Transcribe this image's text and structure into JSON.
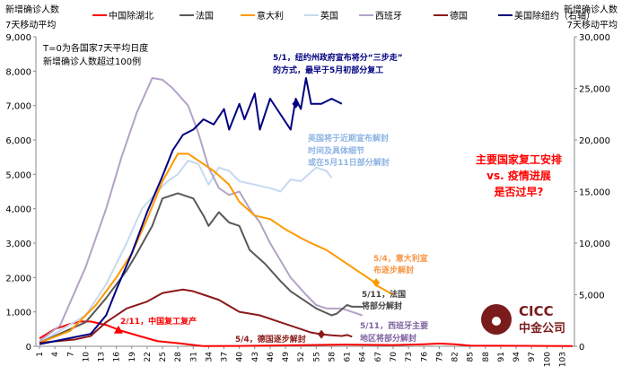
{
  "chart_data": {
    "type": "line",
    "ylabel_left": [
      "新增确诊人数",
      "7天移动平均"
    ],
    "ylabel_right": [
      "新增确诊人数",
      "7天移动平均"
    ],
    "note": [
      "T=0为各国家7天平均日度",
      "新增确诊人数超过100例"
    ],
    "title_annotation": [
      "主要国家复工安排",
      "vs. 疫情进展",
      "是否过早?"
    ],
    "xlim": [
      1,
      105
    ],
    "x_ticks": [
      1,
      4,
      7,
      10,
      13,
      16,
      19,
      22,
      25,
      28,
      31,
      34,
      37,
      40,
      43,
      46,
      49,
      52,
      55,
      58,
      61,
      64,
      67,
      70,
      73,
      76,
      79,
      82,
      85,
      88,
      91,
      94,
      97,
      100,
      103
    ],
    "ylim_left": [
      0,
      9000
    ],
    "y_ticks_left": [
      "0",
      "1,000",
      "2,000",
      "3,000",
      "4,000",
      "5,000",
      "6,000",
      "7,000",
      "8,000",
      "9,000"
    ],
    "ylim_right": [
      0,
      30000
    ],
    "y_ticks_right": [
      "0",
      "5,000",
      "10,000",
      "15,000",
      "20,000",
      "25,000",
      "30,000"
    ],
    "legend_position": "top",
    "series": [
      {
        "name": "中国除湖北",
        "color": "#ff0000",
        "axis": "left",
        "points": [
          [
            1,
            230
          ],
          [
            4,
            500
          ],
          [
            7,
            650
          ],
          [
            9,
            720
          ],
          [
            11,
            720
          ],
          [
            14,
            620
          ],
          [
            17,
            450
          ],
          [
            20,
            320
          ],
          [
            24,
            150
          ],
          [
            28,
            90
          ],
          [
            31,
            40
          ],
          [
            33,
            5
          ],
          [
            40,
            10
          ],
          [
            55,
            40
          ],
          [
            61,
            50
          ],
          [
            70,
            35
          ],
          [
            76,
            60
          ],
          [
            79,
            80
          ],
          [
            82,
            60
          ],
          [
            85,
            20
          ],
          [
            105,
            5
          ]
        ]
      },
      {
        "name": "法国",
        "color": "#595959",
        "axis": "left",
        "points": [
          [
            1,
            100
          ],
          [
            10,
            700
          ],
          [
            14,
            1400
          ],
          [
            18,
            2200
          ],
          [
            20,
            2700
          ],
          [
            23,
            3500
          ],
          [
            25,
            4300
          ],
          [
            27,
            4400
          ],
          [
            28,
            4450
          ],
          [
            31,
            4300
          ],
          [
            33,
            3800
          ],
          [
            34,
            3500
          ],
          [
            36,
            3900
          ],
          [
            38,
            3600
          ],
          [
            40,
            3500
          ],
          [
            42,
            2800
          ],
          [
            45,
            2400
          ],
          [
            48,
            1900
          ],
          [
            50,
            1600
          ],
          [
            53,
            1300
          ],
          [
            55,
            1100
          ],
          [
            58,
            900
          ],
          [
            59,
            950
          ],
          [
            61,
            1200
          ],
          [
            62,
            1150
          ],
          [
            64,
            1150
          ]
        ]
      },
      {
        "name": "意大利",
        "color": "#ff9900",
        "axis": "left",
        "points": [
          [
            1,
            100
          ],
          [
            7,
            450
          ],
          [
            12,
            1200
          ],
          [
            16,
            2000
          ],
          [
            19,
            2700
          ],
          [
            22,
            3700
          ],
          [
            25,
            4800
          ],
          [
            28,
            5600
          ],
          [
            30,
            5600
          ],
          [
            33,
            5300
          ],
          [
            35,
            5100
          ],
          [
            38,
            4700
          ],
          [
            40,
            4200
          ],
          [
            43,
            3800
          ],
          [
            46,
            3700
          ],
          [
            49,
            3400
          ],
          [
            52,
            3150
          ],
          [
            54,
            3000
          ],
          [
            57,
            2800
          ],
          [
            60,
            2500
          ],
          [
            63,
            2200
          ],
          [
            66,
            1900
          ],
          [
            67,
            1750
          ],
          [
            70,
            1500
          ]
        ]
      },
      {
        "name": "英国",
        "color": "#c6d9f0",
        "axis": "left",
        "points": [
          [
            1,
            100
          ],
          [
            10,
            900
          ],
          [
            14,
            1800
          ],
          [
            18,
            3000
          ],
          [
            21,
            4000
          ],
          [
            24,
            4500
          ],
          [
            26,
            4800
          ],
          [
            28,
            5000
          ],
          [
            30,
            5400
          ],
          [
            32,
            5300
          ],
          [
            34,
            4700
          ],
          [
            36,
            5200
          ],
          [
            38,
            5100
          ],
          [
            40,
            4800
          ],
          [
            43,
            4700
          ],
          [
            46,
            4600
          ],
          [
            48,
            4500
          ],
          [
            50,
            4850
          ],
          [
            52,
            4800
          ],
          [
            55,
            5200
          ],
          [
            57,
            5100
          ],
          [
            58,
            4900
          ]
        ]
      },
      {
        "name": "西班牙",
        "color": "#b3a2c7",
        "axis": "left",
        "points": [
          [
            1,
            150
          ],
          [
            5,
            600
          ],
          [
            10,
            2300
          ],
          [
            14,
            4000
          ],
          [
            17,
            5500
          ],
          [
            20,
            6800
          ],
          [
            23,
            7800
          ],
          [
            25,
            7750
          ],
          [
            27,
            7500
          ],
          [
            30,
            7000
          ],
          [
            32,
            6200
          ],
          [
            34,
            5200
          ],
          [
            36,
            4600
          ],
          [
            38,
            4400
          ],
          [
            40,
            4500
          ],
          [
            42,
            4000
          ],
          [
            44,
            3600
          ],
          [
            46,
            3000
          ],
          [
            48,
            2500
          ],
          [
            50,
            2000
          ],
          [
            53,
            1500
          ],
          [
            55,
            1200
          ],
          [
            57,
            1100
          ],
          [
            60,
            1100
          ],
          [
            62,
            1000
          ],
          [
            64,
            900
          ]
        ]
      },
      {
        "name": "德国",
        "color": "#8b1a1a",
        "axis": "left",
        "points": [
          [
            1,
            100
          ],
          [
            8,
            200
          ],
          [
            11,
            300
          ],
          [
            14,
            700
          ],
          [
            18,
            1100
          ],
          [
            22,
            1300
          ],
          [
            25,
            1550
          ],
          [
            27,
            1600
          ],
          [
            29,
            1650
          ],
          [
            31,
            1600
          ],
          [
            33,
            1500
          ],
          [
            36,
            1350
          ],
          [
            40,
            1000
          ],
          [
            44,
            900
          ],
          [
            48,
            700
          ],
          [
            52,
            500
          ],
          [
            54,
            400
          ],
          [
            56,
            350
          ],
          [
            58,
            320
          ],
          [
            60,
            300
          ],
          [
            61,
            330
          ],
          [
            62,
            280
          ]
        ]
      },
      {
        "name": "美国除纽约（右轴）",
        "color": "#000080",
        "axis": "right",
        "points": [
          [
            1,
            200
          ],
          [
            8,
            900
          ],
          [
            11,
            1200
          ],
          [
            14,
            3000
          ],
          [
            16,
            5500
          ],
          [
            19,
            9000
          ],
          [
            22,
            13000
          ],
          [
            25,
            16500
          ],
          [
            27,
            19000
          ],
          [
            29,
            20500
          ],
          [
            31,
            21000
          ],
          [
            33,
            22000
          ],
          [
            35,
            21500
          ],
          [
            37,
            23000
          ],
          [
            38,
            21000
          ],
          [
            40,
            23500
          ],
          [
            41,
            22000
          ],
          [
            43,
            24500
          ],
          [
            44,
            21000
          ],
          [
            46,
            24000
          ],
          [
            48,
            22500
          ],
          [
            50,
            21000
          ],
          [
            51,
            24000
          ],
          [
            52,
            23000
          ],
          [
            53,
            26000
          ],
          [
            54,
            23500
          ],
          [
            56,
            23500
          ],
          [
            58,
            24000
          ],
          [
            60,
            23500
          ]
        ]
      }
    ],
    "markers": [
      {
        "series": "中国除湖北",
        "shape": "triangle",
        "x": 16.4,
        "y": 450,
        "label": "2/11，中国复工复产",
        "color": "#ff0000"
      },
      {
        "series": "德国",
        "shape": "diamond",
        "x": 56,
        "y": 350,
        "label": "5/4，德国逐步解封",
        "color": "#8b1a1a"
      },
      {
        "series": "意大利",
        "shape": "diamond",
        "x": 66.7,
        "y": 1850,
        "label": [
          "5/4，意大利宣",
          "布逐步解封"
        ],
        "color": "#ff9900"
      },
      {
        "series": "美国除纽约（右轴）",
        "shape": "diamond",
        "x": 51,
        "y": 23500,
        "label": [
          "5/1，纽约州政府宣布将分“三步走”",
          "的方式，最早于5月初部分复工"
        ],
        "color": "#000080"
      }
    ],
    "annotations": [
      {
        "label": [
          "英国将于近期宣布解封",
          "时间及具体细节",
          "或在5月11日部分解封"
        ],
        "color": "#8eb4e3"
      },
      {
        "label": [
          "5/11，法国",
          "将部分解封"
        ],
        "color": "#404040"
      },
      {
        "label": [
          "5/11，西班牙主要",
          "地区将部分解封"
        ],
        "color": "#8064a2"
      }
    ]
  },
  "logo": {
    "text_en": "CICC",
    "text_cn": "中金公司"
  }
}
